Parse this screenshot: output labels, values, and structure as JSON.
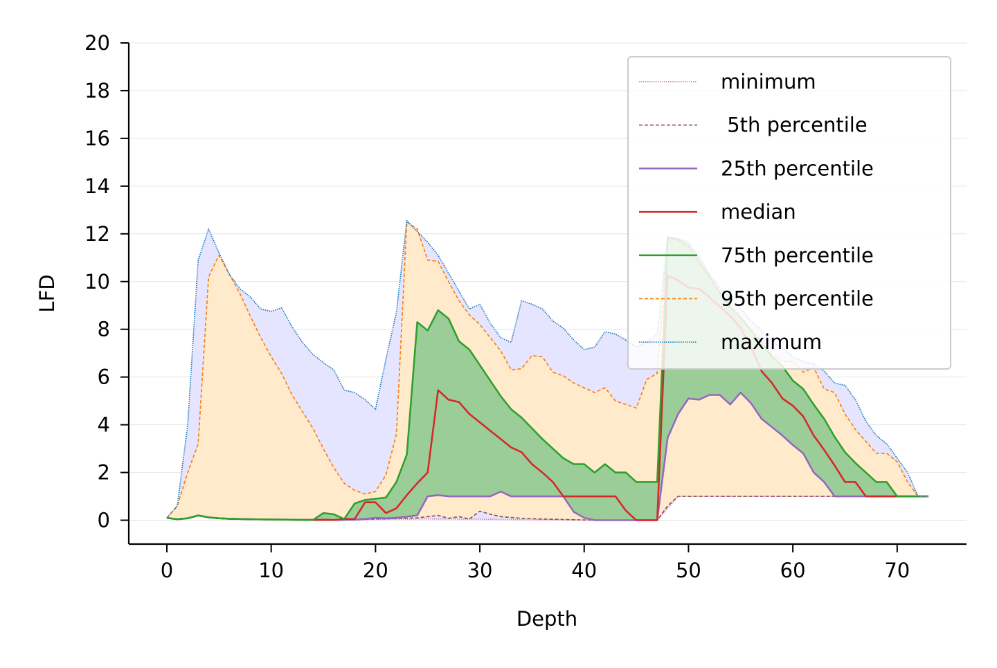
{
  "chart_data": {
    "type": "area",
    "title": "",
    "xlabel": "Depth",
    "ylabel": "LFD",
    "xlim": [
      -3.65,
      76.65
    ],
    "ylim": [
      -1,
      20
    ],
    "xticks": [
      0,
      10,
      20,
      30,
      40,
      50,
      60,
      70
    ],
    "yticks": [
      0,
      2,
      4,
      6,
      8,
      10,
      12,
      14,
      16,
      18,
      20
    ],
    "grid": "horizontal",
    "legend_position": "top-right",
    "fill_bands": [
      {
        "from": "minimum",
        "to": "maximum",
        "color": "#e5e5ff"
      },
      {
        "from": "5th percentile",
        "to": "95th percentile",
        "color": "#ffebcc"
      },
      {
        "from": "25th percentile",
        "to": "75th percentile",
        "color": "#9bcd98"
      }
    ],
    "series": [
      {
        "name": "minimum",
        "color": "#e377c2",
        "style": "dotted",
        "width": 1,
        "x": [
          0,
          1,
          2,
          3,
          4,
          5,
          6,
          8,
          10,
          12,
          14,
          16,
          18,
          20,
          22,
          25,
          30,
          35,
          40,
          45,
          46,
          47,
          48,
          49,
          50,
          55,
          60,
          65,
          70,
          73
        ],
        "y": [
          0.1,
          0.04,
          0.08,
          0.2,
          0.12,
          0.08,
          0.06,
          0.04,
          0.03,
          0.02,
          0.01,
          0.01,
          0.01,
          0.03,
          0.04,
          0.05,
          0.04,
          0.02,
          0.01,
          0.0,
          0.0,
          0.0,
          0.5,
          1.0,
          1.0,
          1.0,
          1.0,
          1.0,
          1.0,
          1.0
        ]
      },
      {
        "name": "5th percentile",
        "color": "#8c564b",
        "style": "dashed",
        "width": 1,
        "x": [
          0,
          1,
          2,
          3,
          4,
          5,
          6,
          8,
          10,
          12,
          14,
          16,
          18,
          20,
          22,
          24,
          25,
          26,
          27,
          28,
          29,
          30,
          31,
          32,
          34,
          36,
          38,
          40,
          42,
          44,
          46,
          47,
          48,
          49,
          50,
          55,
          60,
          65,
          70,
          73
        ],
        "y": [
          0.1,
          0.04,
          0.08,
          0.2,
          0.12,
          0.08,
          0.06,
          0.04,
          0.03,
          0.02,
          0.01,
          0.01,
          0.02,
          0.05,
          0.07,
          0.1,
          0.15,
          0.2,
          0.08,
          0.15,
          0.05,
          0.38,
          0.25,
          0.15,
          0.08,
          0.05,
          0.03,
          0.01,
          0.0,
          0.0,
          0.0,
          0.0,
          0.6,
          1.0,
          1.0,
          1.0,
          1.0,
          1.0,
          1.0,
          1.0
        ]
      },
      {
        "name": "25th percentile",
        "color": "#9467bd",
        "style": "solid",
        "width": 1.5,
        "x": [
          0,
          1,
          2,
          3,
          4,
          5,
          6,
          8,
          10,
          12,
          14,
          16,
          18,
          19,
          20,
          21,
          22,
          23,
          24,
          25,
          26,
          27,
          28,
          29,
          30,
          31,
          32,
          33,
          34,
          35,
          36,
          37,
          38,
          39,
          40,
          41,
          42,
          43,
          44,
          45,
          46,
          47,
          48,
          49,
          50,
          51,
          52,
          53,
          54,
          55,
          56,
          57,
          58,
          59,
          60,
          61,
          62,
          63,
          64,
          65,
          66,
          67,
          68,
          69,
          70,
          71,
          72,
          73
        ],
        "y": [
          0.1,
          0.04,
          0.08,
          0.2,
          0.12,
          0.08,
          0.06,
          0.04,
          0.03,
          0.02,
          0.01,
          0.01,
          0.02,
          0.05,
          0.1,
          0.08,
          0.1,
          0.15,
          0.2,
          1.0,
          1.05,
          1.0,
          1.0,
          1.0,
          1.0,
          1.0,
          1.2,
          1.0,
          1.0,
          1.0,
          1.0,
          1.0,
          1.0,
          0.35,
          0.1,
          0.0,
          0.0,
          0.0,
          0.0,
          0.0,
          0.0,
          0.0,
          3.45,
          4.45,
          5.1,
          5.05,
          5.25,
          5.25,
          4.85,
          5.35,
          4.9,
          4.25,
          3.9,
          3.55,
          3.15,
          2.8,
          2.0,
          1.6,
          1.0,
          1.0,
          1.0,
          1.0,
          1.0,
          1.0,
          1.0,
          1.0,
          1.0,
          1.0
        ]
      },
      {
        "name": "median",
        "color": "#d62728",
        "style": "solid",
        "width": 1.5,
        "x": [
          0,
          1,
          2,
          3,
          4,
          5,
          6,
          8,
          10,
          12,
          14,
          15,
          16,
          17,
          18,
          19,
          20,
          21,
          22,
          23,
          24,
          25,
          26,
          27,
          28,
          29,
          30,
          31,
          32,
          33,
          34,
          35,
          36,
          37,
          38,
          39,
          40,
          41,
          42,
          43,
          44,
          45,
          46,
          47,
          48,
          49,
          50,
          51,
          52,
          53,
          54,
          55,
          56,
          57,
          58,
          59,
          60,
          61,
          62,
          63,
          64,
          65,
          66,
          67,
          68,
          69,
          70,
          71,
          72,
          73
        ],
        "y": [
          0.1,
          0.04,
          0.08,
          0.2,
          0.12,
          0.08,
          0.06,
          0.04,
          0.03,
          0.02,
          0.01,
          0.02,
          0.01,
          0.05,
          0.05,
          0.75,
          0.75,
          0.3,
          0.5,
          1.05,
          1.55,
          2.0,
          5.45,
          5.05,
          4.95,
          4.45,
          4.1,
          3.75,
          3.4,
          3.05,
          2.85,
          2.35,
          2.0,
          1.6,
          1.0,
          1.0,
          1.0,
          1.0,
          1.0,
          1.0,
          0.4,
          0.0,
          0.0,
          0.0,
          10.25,
          10.05,
          9.75,
          9.7,
          9.35,
          8.95,
          8.55,
          8.05,
          7.25,
          6.25,
          5.75,
          5.1,
          4.8,
          4.35,
          3.55,
          2.95,
          2.3,
          1.6,
          1.6,
          1.0,
          1.0,
          1.0,
          1.0,
          1.0,
          1.0,
          1.0
        ]
      },
      {
        "name": "75th percentile",
        "color": "#2ca02c",
        "style": "solid",
        "width": 1.5,
        "x": [
          0,
          1,
          2,
          3,
          4,
          5,
          6,
          8,
          10,
          12,
          14,
          15,
          16,
          17,
          18,
          19,
          20,
          21,
          22,
          23,
          24,
          25,
          26,
          27,
          28,
          29,
          30,
          31,
          32,
          33,
          34,
          35,
          36,
          37,
          38,
          39,
          40,
          41,
          42,
          43,
          44,
          45,
          46,
          47,
          48,
          49,
          50,
          51,
          52,
          53,
          54,
          55,
          56,
          57,
          58,
          59,
          60,
          61,
          62,
          63,
          64,
          65,
          66,
          67,
          68,
          69,
          70,
          71,
          72,
          73
        ],
        "y": [
          0.1,
          0.04,
          0.08,
          0.2,
          0.12,
          0.08,
          0.06,
          0.04,
          0.03,
          0.02,
          0.01,
          0.3,
          0.25,
          0.05,
          0.7,
          0.85,
          0.9,
          0.95,
          1.6,
          2.75,
          8.3,
          7.95,
          8.8,
          8.45,
          7.5,
          7.15,
          6.5,
          5.85,
          5.2,
          4.65,
          4.3,
          3.85,
          3.4,
          3.0,
          2.6,
          2.35,
          2.35,
          2.0,
          2.35,
          2.0,
          2.0,
          1.6,
          1.6,
          1.6,
          11.85,
          11.75,
          11.5,
          10.85,
          10.2,
          9.55,
          8.95,
          8.5,
          7.95,
          7.45,
          6.85,
          6.45,
          5.85,
          5.5,
          4.85,
          4.25,
          3.5,
          2.85,
          2.4,
          2.0,
          1.6,
          1.6,
          1.0,
          1.0,
          1.0,
          1.0
        ]
      },
      {
        "name": "95th percentile",
        "color": "#ff7f0e",
        "style": "dashed",
        "width": 1,
        "x": [
          0,
          1,
          2,
          3,
          4,
          5,
          6,
          7,
          8,
          9,
          10,
          11,
          12,
          13,
          14,
          15,
          16,
          17,
          18,
          19,
          20,
          21,
          22,
          23,
          24,
          25,
          26,
          27,
          28,
          29,
          30,
          31,
          32,
          33,
          34,
          35,
          36,
          37,
          38,
          39,
          40,
          41,
          42,
          43,
          44,
          45,
          46,
          47,
          48,
          49,
          50,
          51,
          52,
          53,
          54,
          55,
          56,
          57,
          58,
          59,
          60,
          61,
          62,
          63,
          64,
          65,
          66,
          67,
          68,
          69,
          70,
          71,
          72,
          73
        ],
        "y": [
          0.1,
          0.6,
          2.0,
          3.2,
          10.2,
          11.1,
          10.3,
          9.5,
          8.55,
          7.65,
          6.85,
          6.15,
          5.25,
          4.55,
          3.85,
          3.0,
          2.2,
          1.55,
          1.25,
          1.1,
          1.2,
          1.9,
          3.6,
          12.5,
          12.2,
          10.9,
          10.85,
          10.0,
          9.2,
          8.6,
          8.2,
          7.65,
          7.1,
          6.3,
          6.35,
          6.9,
          6.85,
          6.2,
          6.05,
          5.75,
          5.55,
          5.35,
          5.55,
          5.0,
          4.85,
          4.7,
          5.9,
          6.15,
          11.8,
          11.75,
          11.5,
          10.85,
          10.2,
          9.55,
          8.95,
          8.5,
          7.95,
          7.45,
          6.95,
          6.65,
          6.65,
          6.2,
          6.4,
          5.5,
          5.35,
          4.45,
          3.8,
          3.3,
          2.8,
          2.8,
          2.45,
          1.6,
          1.0,
          1.0
        ]
      },
      {
        "name": "maximum",
        "color": "#1f77b4",
        "style": "dotted",
        "width": 1,
        "x": [
          0,
          1,
          2,
          3,
          4,
          5,
          6,
          7,
          8,
          9,
          10,
          11,
          12,
          13,
          14,
          15,
          16,
          17,
          18,
          19,
          20,
          21,
          22,
          23,
          24,
          25,
          26,
          27,
          28,
          29,
          30,
          31,
          32,
          33,
          34,
          35,
          36,
          37,
          38,
          39,
          40,
          41,
          42,
          43,
          44,
          45,
          46,
          47,
          48,
          49,
          50,
          51,
          52,
          53,
          54,
          55,
          56,
          57,
          58,
          59,
          60,
          61,
          62,
          63,
          64,
          65,
          66,
          67,
          68,
          69,
          70,
          71,
          72,
          73
        ],
        "y": [
          0.1,
          0.6,
          4.0,
          10.9,
          12.2,
          11.2,
          10.3,
          9.7,
          9.35,
          8.85,
          8.75,
          8.9,
          8.1,
          7.45,
          6.95,
          6.6,
          6.3,
          5.45,
          5.35,
          5.05,
          4.65,
          6.75,
          8.7,
          12.55,
          12.1,
          11.65,
          11.1,
          10.35,
          9.6,
          8.85,
          9.05,
          8.25,
          7.65,
          7.45,
          9.2,
          9.05,
          8.85,
          8.35,
          8.05,
          7.55,
          7.15,
          7.25,
          7.9,
          7.8,
          7.55,
          7.25,
          7.45,
          7.8,
          11.85,
          11.8,
          11.65,
          11.05,
          10.3,
          9.75,
          9.35,
          8.85,
          8.35,
          7.95,
          7.45,
          7.25,
          6.85,
          6.65,
          6.55,
          6.25,
          5.75,
          5.65,
          5.05,
          4.15,
          3.55,
          3.2,
          2.6,
          2.0,
          1.0,
          1.0
        ]
      }
    ]
  }
}
